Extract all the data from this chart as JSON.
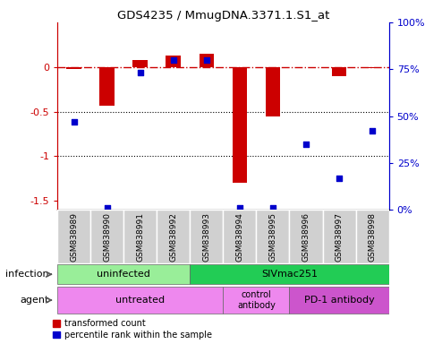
{
  "title": "GDS4235 / MmugDNA.3371.1.S1_at",
  "samples": [
    "GSM838989",
    "GSM838990",
    "GSM838991",
    "GSM838992",
    "GSM838993",
    "GSM838994",
    "GSM838995",
    "GSM838996",
    "GSM838997",
    "GSM838998"
  ],
  "bar_values": [
    -0.02,
    -0.43,
    0.08,
    0.13,
    0.15,
    -1.3,
    -0.55,
    0.0,
    -0.1,
    -0.01
  ],
  "dot_values": [
    47,
    1,
    73,
    80,
    80,
    1,
    1,
    35,
    17,
    42
  ],
  "ylim_left": [
    -1.6,
    0.5
  ],
  "ylim_right": [
    0,
    100
  ],
  "bar_color": "#cc0000",
  "dot_color": "#0000cc",
  "legend_items": [
    {
      "label": "transformed count",
      "color": "#cc0000"
    },
    {
      "label": "percentile rank within the sample",
      "color": "#0000cc"
    }
  ]
}
